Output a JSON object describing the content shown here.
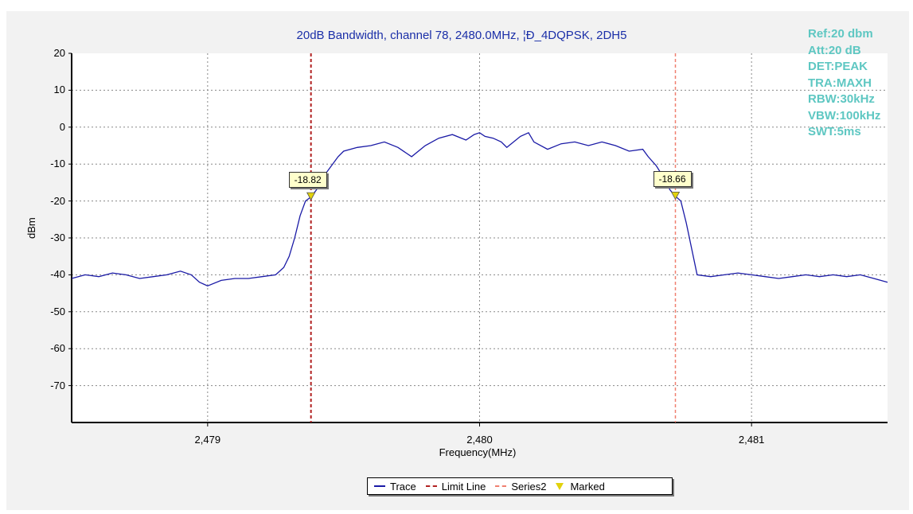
{
  "chart_data": {
    "type": "line",
    "title": "20dB Bandwidth, channel 78, 2480.0MHz, ¦Ð_4DQPSK, 2DH5",
    "xlabel": "Frequency(MHz)",
    "ylabel": "dBm",
    "xlim": [
      2478.5,
      2481.5
    ],
    "ylim": [
      -80,
      20
    ],
    "x_tick_labels": [
      "2,479",
      "2,480",
      "2,481"
    ],
    "x_tick_values": [
      2479,
      2480,
      2481
    ],
    "y_ticks": [
      20,
      10,
      0,
      -10,
      -20,
      -30,
      -40,
      -50,
      -60,
      -70
    ],
    "grid": true,
    "legend_position": "bottom",
    "series": [
      {
        "name": "Trace",
        "color": "#1a1aa6",
        "x": [
          2478.5,
          2478.55,
          2478.6,
          2478.65,
          2478.7,
          2478.75,
          2478.8,
          2478.85,
          2478.9,
          2478.94,
          2478.97,
          2479.0,
          2479.05,
          2479.1,
          2479.15,
          2479.2,
          2479.25,
          2479.28,
          2479.3,
          2479.32,
          2479.34,
          2479.36,
          2479.38,
          2479.4,
          2479.42,
          2479.45,
          2479.48,
          2479.5,
          2479.55,
          2479.6,
          2479.65,
          2479.7,
          2479.75,
          2479.8,
          2479.85,
          2479.9,
          2479.95,
          2479.98,
          2480.0,
          2480.02,
          2480.05,
          2480.08,
          2480.1,
          2480.15,
          2480.18,
          2480.2,
          2480.25,
          2480.3,
          2480.35,
          2480.4,
          2480.45,
          2480.5,
          2480.55,
          2480.6,
          2480.62,
          2480.65,
          2480.68,
          2480.7,
          2480.72,
          2480.74,
          2480.76,
          2480.78,
          2480.8,
          2480.85,
          2480.9,
          2480.95,
          2481.0,
          2481.05,
          2481.1,
          2481.15,
          2481.2,
          2481.25,
          2481.3,
          2481.35,
          2481.4,
          2481.45,
          2481.5
        ],
        "y": [
          -41,
          -40,
          -40.5,
          -39.5,
          -40,
          -41,
          -40.5,
          -40,
          -39,
          -40,
          -42,
          -43,
          -41.5,
          -41,
          -41,
          -40.5,
          -40,
          -38,
          -35,
          -30,
          -24,
          -20,
          -18.9,
          -17,
          -14,
          -11,
          -8,
          -6.5,
          -5.5,
          -5,
          -4,
          -5.5,
          -8,
          -5,
          -3,
          -2,
          -3.5,
          -2,
          -1.5,
          -2.5,
          -3,
          -4,
          -5.5,
          -2.5,
          -1.5,
          -4,
          -6,
          -4.5,
          -4,
          -5,
          -4,
          -5,
          -6.5,
          -6,
          -8,
          -10.5,
          -14,
          -17,
          -18.7,
          -20,
          -26,
          -33,
          -40,
          -40.5,
          -40,
          -39.5,
          -40,
          -40.5,
          -41,
          -40.5,
          -40,
          -40.5,
          -40,
          -40.5,
          -40,
          -41,
          -42
        ]
      },
      {
        "name": "Limit Line",
        "color": "#b22222",
        "x_value": 2479.38
      },
      {
        "name": "Series2",
        "color": "#f08070",
        "x_value": 2480.72
      }
    ],
    "markers": [
      {
        "name": "Marked",
        "x": 2479.38,
        "y": -18.82,
        "label": "-18.82"
      },
      {
        "name": "Marked",
        "x": 2480.72,
        "y": -18.66,
        "label": "-18.66"
      }
    ]
  },
  "settings": [
    "Ref:20 dbm",
    "Att:20 dB",
    "DET:PEAK",
    "TRA:MAXH",
    "RBW:30kHz",
    "VBW:100kHz",
    "SWT:5ms"
  ],
  "legend": {
    "trace": "Trace",
    "limit_line": "Limit Line",
    "series2": "Series2",
    "marked": "Marked"
  },
  "colors": {
    "trace": "#1a1aa6",
    "limit": "#b22222",
    "series2": "#f08070",
    "marker": "#e2d20c",
    "settings": "#5ec7c2",
    "title": "#1b2fa8"
  }
}
